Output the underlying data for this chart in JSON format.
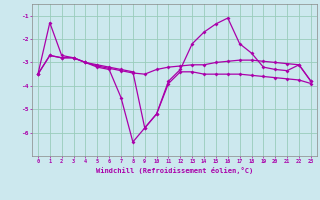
{
  "xlabel": "Windchill (Refroidissement éolien,°C)",
  "background_color": "#cce8ee",
  "grid_color": "#99ccbb",
  "line_color": "#aa00aa",
  "x": [
    0,
    1,
    2,
    3,
    4,
    5,
    6,
    7,
    8,
    9,
    10,
    11,
    12,
    13,
    14,
    15,
    16,
    17,
    18,
    19,
    20,
    21,
    22,
    23
  ],
  "series1": [
    -3.5,
    -1.3,
    -2.7,
    -2.8,
    -3.0,
    -3.1,
    -3.2,
    -3.3,
    -3.4,
    -5.8,
    -5.2,
    -3.8,
    -3.3,
    -2.2,
    -1.7,
    -1.35,
    -1.1,
    -2.2,
    -2.6,
    -3.2,
    -3.3,
    -3.35,
    -3.1,
    -3.8
  ],
  "series2": [
    -3.5,
    -2.7,
    -2.8,
    -2.8,
    -3.0,
    -3.2,
    -3.3,
    -4.5,
    -6.4,
    -5.8,
    -5.2,
    -3.9,
    -3.4,
    -3.4,
    -3.5,
    -3.5,
    -3.5,
    -3.5,
    -3.55,
    -3.6,
    -3.65,
    -3.7,
    -3.75,
    -3.9
  ],
  "series3": [
    -3.5,
    -2.7,
    -2.8,
    -2.8,
    -3.0,
    -3.15,
    -3.25,
    -3.35,
    -3.45,
    -3.5,
    -3.3,
    -3.2,
    -3.15,
    -3.1,
    -3.1,
    -3.0,
    -2.95,
    -2.9,
    -2.9,
    -2.95,
    -3.0,
    -3.05,
    -3.1,
    -3.8
  ],
  "ylim": [
    -7.0,
    -0.5
  ],
  "yticks": [
    -1,
    -2,
    -3,
    -4,
    -5,
    -6
  ],
  "xlim": [
    -0.5,
    23.5
  ]
}
